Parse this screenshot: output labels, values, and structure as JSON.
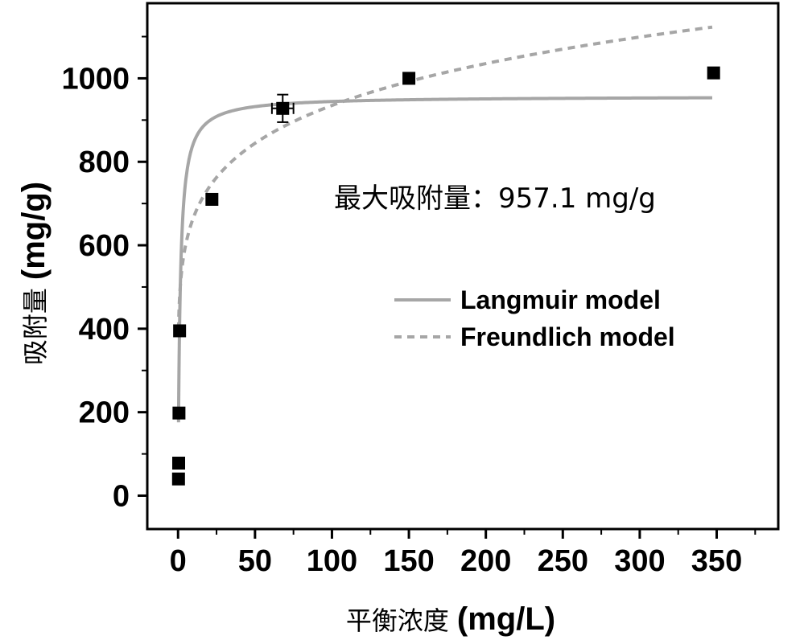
{
  "chart_data": {
    "type": "scatter",
    "xlabel": {
      "cn": "平衡浓度",
      "unit": "(mg/L)"
    },
    "ylabel": {
      "cn": "吸附量",
      "unit": "(mg/g)"
    },
    "xlim": [
      -20,
      390
    ],
    "ylim": [
      -80,
      1180
    ],
    "x_ticks": [
      0,
      50,
      100,
      150,
      200,
      250,
      300,
      350
    ],
    "y_ticks": [
      0,
      200,
      400,
      600,
      800,
      1000
    ],
    "grid": false,
    "legend_position": "right",
    "annotation": "最大吸附量：957.1 mg/g",
    "points": [
      {
        "x": 0.3,
        "y": 40
      },
      {
        "x": 0.4,
        "y": 78
      },
      {
        "x": 0.6,
        "y": 198
      },
      {
        "x": 1.0,
        "y": 395
      },
      {
        "x": 22,
        "y": 710
      },
      {
        "x": 68,
        "y": 928,
        "xerr": 7,
        "yerr": 33
      },
      {
        "x": 150,
        "y": 1000
      },
      {
        "x": 348,
        "y": 1013
      }
    ],
    "series": [
      {
        "name": "Langmuir model",
        "style": "solid",
        "color": "#a6a6a6",
        "model": "langmuir",
        "qmax": 957.1,
        "K": 0.75
      },
      {
        "name": "Freundlich model",
        "style": "dashed",
        "color": "#a6a6a6",
        "model": "freundlich",
        "Kf": 475,
        "n": 6.8
      }
    ]
  }
}
